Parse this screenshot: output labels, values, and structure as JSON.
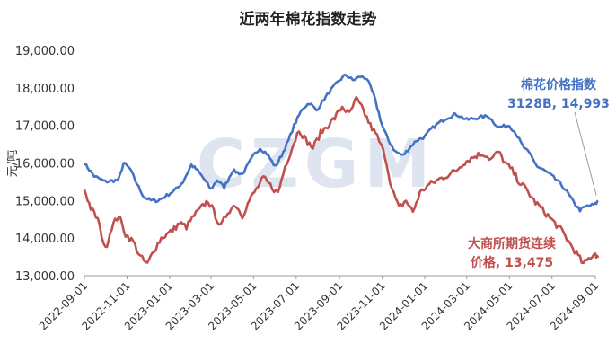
{
  "watermark": "CZGM",
  "chart_data": {
    "type": "line",
    "title": "近两年棉花指数走势",
    "ylabel": "元/吨",
    "xlabel": "",
    "ylim": [
      13000,
      19000
    ],
    "y_ticks": [
      "13,000.00",
      "14,000.00",
      "15,000.00",
      "16,000.00",
      "17,000.00",
      "18,000.00",
      "19,000.00"
    ],
    "y_tick_values": [
      13000,
      14000,
      15000,
      16000,
      17000,
      18000,
      19000
    ],
    "x_ticks": [
      "2022-09-01",
      "2022-11-01",
      "2023-01-01",
      "2023-03-01",
      "2023-05-01",
      "2023-07-01",
      "2023-09-01",
      "2023-11-01",
      "2024-01-01",
      "2024-03-01",
      "2024-05-01",
      "2024-07-01",
      "2024-09-01"
    ],
    "grid": false,
    "legend": "none",
    "series": [
      {
        "name": "棉花价格指数",
        "color": "#4472c4",
        "dates": [
          "2022-09-01",
          "2022-09-15",
          "2022-10-01",
          "2022-10-20",
          "2022-10-27",
          "2022-11-05",
          "2022-11-15",
          "2022-11-25",
          "2022-12-05",
          "2022-12-15",
          "2022-12-25",
          "2023-01-10",
          "2023-01-20",
          "2023-02-01",
          "2023-02-10",
          "2023-02-20",
          "2023-03-01",
          "2023-03-10",
          "2023-03-20",
          "2023-04-01",
          "2023-04-15",
          "2023-05-01",
          "2023-05-10",
          "2023-05-20",
          "2023-06-01",
          "2023-06-10",
          "2023-06-20",
          "2023-06-28",
          "2023-07-10",
          "2023-07-20",
          "2023-07-30",
          "2023-08-10",
          "2023-08-20",
          "2023-09-01",
          "2023-09-10",
          "2023-09-20",
          "2023-10-01",
          "2023-10-10",
          "2023-10-20",
          "2023-11-01",
          "2023-11-10",
          "2023-11-20",
          "2023-12-01",
          "2023-12-10",
          "2023-12-20",
          "2024-01-01",
          "2024-01-10",
          "2024-01-20",
          "2024-02-01",
          "2024-02-15",
          "2024-03-01",
          "2024-03-15",
          "2024-04-01",
          "2024-04-15",
          "2024-05-01",
          "2024-05-10",
          "2024-05-20",
          "2024-06-01",
          "2024-06-10",
          "2024-06-20",
          "2024-07-01",
          "2024-07-10",
          "2024-07-20",
          "2024-08-01",
          "2024-08-10",
          "2024-08-20",
          "2024-09-01",
          "2024-09-05"
        ],
        "values": [
          16000,
          15650,
          15500,
          15550,
          16000,
          15850,
          15450,
          15100,
          15000,
          15000,
          15100,
          15300,
          15500,
          15950,
          15800,
          15550,
          15300,
          15550,
          15350,
          15800,
          15700,
          16200,
          16400,
          16250,
          15900,
          16200,
          16600,
          17000,
          17450,
          17600,
          17400,
          17700,
          17950,
          18200,
          18350,
          18200,
          18300,
          18250,
          17800,
          17000,
          16600,
          16300,
          16200,
          16400,
          16600,
          16700,
          16900,
          17050,
          17200,
          17300,
          17150,
          17200,
          17250,
          16950,
          17000,
          16800,
          16450,
          16200,
          15900,
          15800,
          15650,
          15500,
          15300,
          14950,
          14750,
          14850,
          14900,
          14993
        ]
      },
      {
        "name": "大商所期货连续价格",
        "color": "#c0504d",
        "dates": [
          "2022-09-01",
          "2022-09-10",
          "2022-09-20",
          "2022-10-01",
          "2022-10-10",
          "2022-10-20",
          "2022-10-30",
          "2022-11-10",
          "2022-11-20",
          "2022-11-30",
          "2022-12-10",
          "2022-12-20",
          "2023-01-05",
          "2023-01-15",
          "2023-01-25",
          "2023-02-05",
          "2023-02-15",
          "2023-02-25",
          "2023-03-05",
          "2023-03-15",
          "2023-03-25",
          "2023-04-05",
          "2023-04-15",
          "2023-04-25",
          "2023-05-05",
          "2023-05-15",
          "2023-05-25",
          "2023-06-05",
          "2023-06-15",
          "2023-06-25",
          "2023-07-05",
          "2023-07-15",
          "2023-07-25",
          "2023-08-05",
          "2023-08-15",
          "2023-08-25",
          "2023-09-05",
          "2023-09-15",
          "2023-09-25",
          "2023-10-05",
          "2023-10-15",
          "2023-10-25",
          "2023-11-05",
          "2023-11-15",
          "2023-11-25",
          "2023-12-05",
          "2023-12-15",
          "2023-12-25",
          "2024-01-05",
          "2024-01-15",
          "2024-01-25",
          "2024-02-05",
          "2024-02-15",
          "2024-02-25",
          "2024-03-05",
          "2024-03-15",
          "2024-03-25",
          "2024-04-05",
          "2024-04-15",
          "2024-04-25",
          "2024-05-05",
          "2024-05-15",
          "2024-05-25",
          "2024-06-05",
          "2024-06-15",
          "2024-06-25",
          "2024-07-05",
          "2024-07-15",
          "2024-07-25",
          "2024-08-05",
          "2024-08-15",
          "2024-08-25",
          "2024-09-01",
          "2024-09-05"
        ],
        "values": [
          15300,
          14800,
          14500,
          13700,
          14300,
          14600,
          14100,
          13900,
          13500,
          13300,
          13700,
          14000,
          14200,
          14400,
          14300,
          14600,
          14800,
          15000,
          14700,
          14300,
          14700,
          14900,
          14600,
          15000,
          15300,
          15600,
          15400,
          15200,
          15900,
          16400,
          16900,
          16600,
          16400,
          16800,
          17000,
          17200,
          17500,
          17300,
          17700,
          17400,
          17000,
          16700,
          16200,
          15300,
          14800,
          15000,
          14700,
          15200,
          15400,
          15500,
          15600,
          15700,
          15800,
          16000,
          16100,
          16200,
          16250,
          16100,
          16300,
          16000,
          15800,
          15500,
          15300,
          15000,
          14800,
          14600,
          14400,
          14200,
          13900,
          13600,
          13300,
          13500,
          13600,
          13475
        ]
      }
    ],
    "annotations": [
      {
        "series": "棉花价格指数",
        "lines": [
          "棉花价格指数",
          "3128B, 14,993"
        ],
        "color": "#4472c4"
      },
      {
        "series": "大商所期货连续价格",
        "lines": [
          "大商所期货连续",
          "价格, 13,475"
        ],
        "color": "#c0504d"
      }
    ]
  }
}
